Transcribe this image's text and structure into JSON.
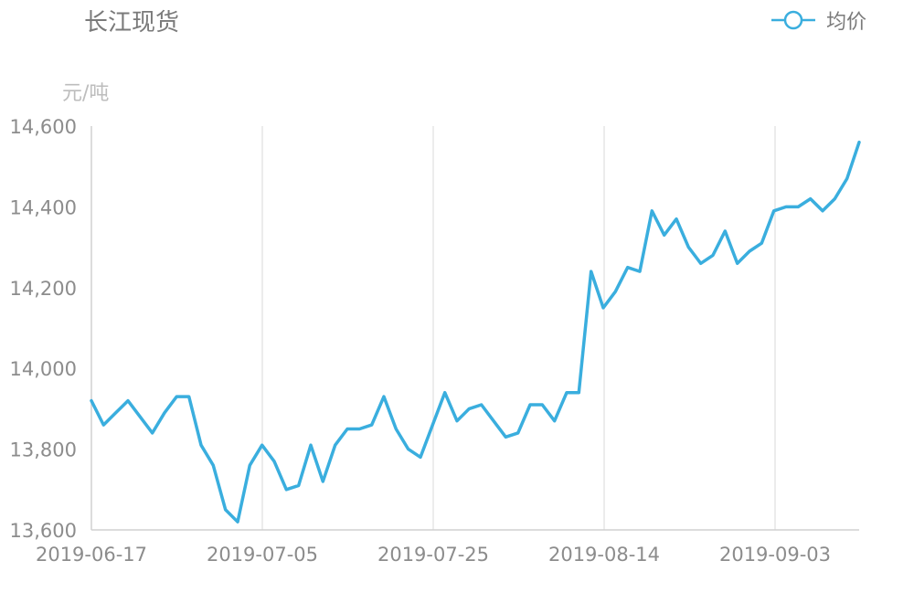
{
  "chart_data": {
    "type": "line",
    "title": "长江现货",
    "ylabel": "元/吨",
    "ylim": [
      13600,
      14600
    ],
    "yticks": [
      13600,
      13800,
      14000,
      14200,
      14400,
      14600
    ],
    "ytick_labels": [
      "13,600",
      "13,800",
      "14,000",
      "14,200",
      "14,400",
      "14,600"
    ],
    "xtick_labels": [
      "2019-06-17",
      "2019-07-05",
      "2019-07-25",
      "2019-08-14",
      "2019-09-03"
    ],
    "legend_position": "top-right",
    "grid": "vertical",
    "series": [
      {
        "name": "均价",
        "color": "#3aaede",
        "values": [
          13920,
          13860,
          13890,
          13920,
          13880,
          13840,
          13890,
          13930,
          13930,
          13810,
          13760,
          13650,
          13620,
          13760,
          13810,
          13770,
          13700,
          13710,
          13810,
          13720,
          13810,
          13850,
          13850,
          13860,
          13930,
          13850,
          13800,
          13780,
          13860,
          13940,
          13870,
          13900,
          13910,
          13870,
          13830,
          13840,
          13910,
          13910,
          13870,
          13940,
          13940,
          14240,
          14150,
          14190,
          14250,
          14240,
          14390,
          14330,
          14370,
          14300,
          14260,
          14280,
          14340,
          14260,
          14290,
          14310,
          14390,
          14400,
          14400,
          14420,
          14390,
          14420,
          14470,
          14560
        ]
      }
    ]
  }
}
